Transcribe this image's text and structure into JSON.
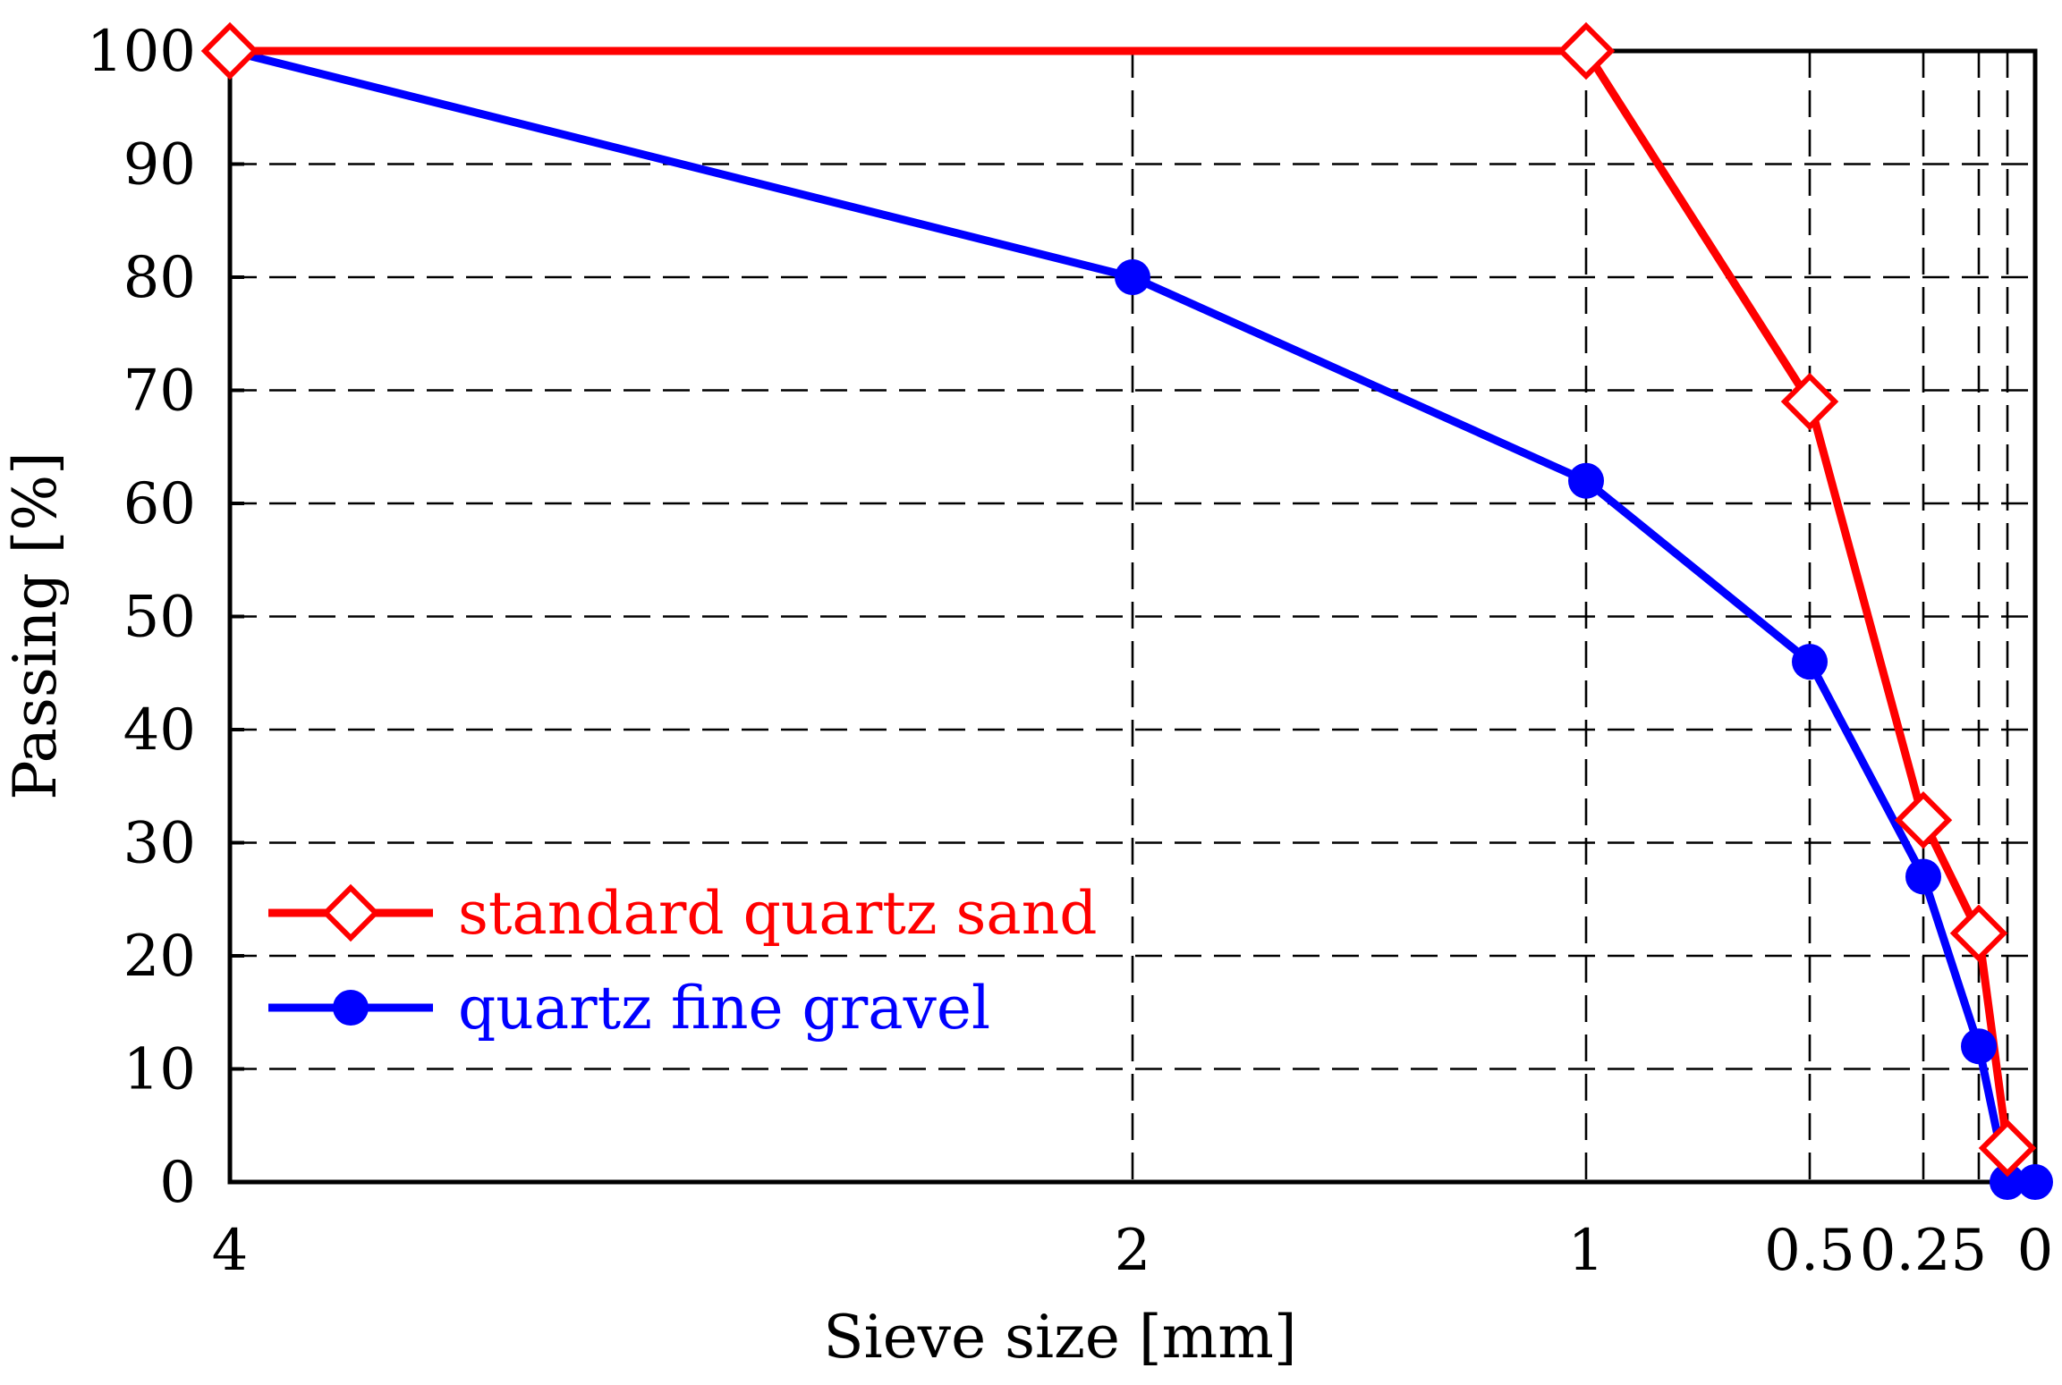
{
  "chart_data": {
    "type": "line",
    "title": "",
    "xlabel": "Sieve size [mm]",
    "ylabel": "Passing [%]",
    "x_ticks": [
      {
        "value": 4,
        "label": "4"
      },
      {
        "value": 2,
        "label": "2"
      },
      {
        "value": 1,
        "label": "1"
      },
      {
        "value": 0.5,
        "label": "0.5"
      },
      {
        "value": 0.25,
        "label": "0.25"
      },
      {
        "value": 0,
        "label": "0"
      }
    ],
    "x_gridlines": [
      2,
      1,
      0.5,
      0.25,
      0.125,
      0.063
    ],
    "y_ticks": [
      0,
      10,
      20,
      30,
      40,
      50,
      60,
      70,
      80,
      90,
      100
    ],
    "ylim": [
      0,
      100
    ],
    "x_scale": "log2, decreasing left to right; 0 plotted at right edge",
    "grid": true,
    "grid_style": "dashed",
    "legend_position": "lower-left",
    "series": [
      {
        "name": "standard quartz sand",
        "color": "#ff0000",
        "marker": "open-diamond",
        "x": [
          4,
          1,
          0.5,
          0.25,
          0.125,
          0.063
        ],
        "y": [
          100,
          100,
          69,
          32,
          22,
          3
        ]
      },
      {
        "name": "quartz fine gravel",
        "color": "#0000ff",
        "marker": "filled-circle",
        "x": [
          4,
          2,
          1,
          0.5,
          0.25,
          0.125,
          0.063,
          0
        ],
        "y": [
          100,
          80,
          62,
          46,
          27,
          12,
          0,
          0
        ]
      }
    ]
  }
}
